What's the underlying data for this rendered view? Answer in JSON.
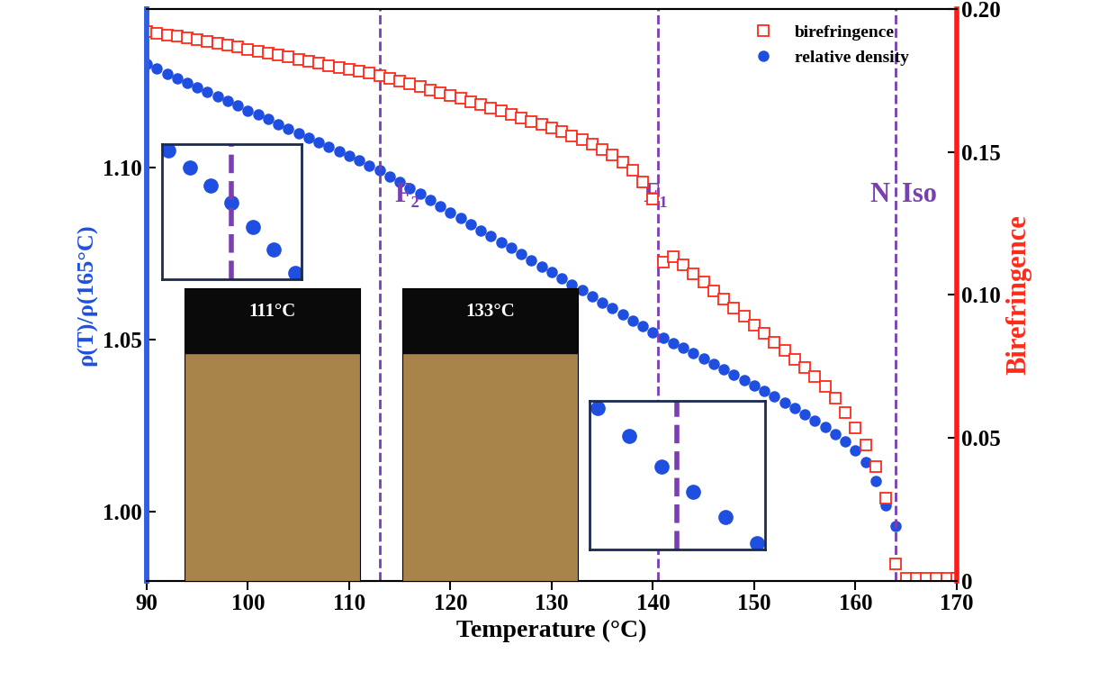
{
  "chart_data": {
    "type": "scatter",
    "xlabel": "Temperature (°C)",
    "ylabel": "ρ(T)/ρ(165°C)",
    "y2label": "Birefringence",
    "xlim": [
      90,
      170
    ],
    "xticks": [
      90,
      100,
      110,
      120,
      130,
      140,
      150,
      160,
      170
    ],
    "ylim": [
      0.98,
      1.146
    ],
    "yticks": [
      {
        "value": 1.0,
        "label": "1.00"
      },
      1.05,
      {
        "value": 1.1,
        "label": "1.10"
      }
    ],
    "y2lim": [
      0,
      0.2
    ],
    "y2ticks": [
      0,
      0.05,
      {
        "value": 0.1,
        "label": "0.10"
      },
      0.15,
      {
        "value": 0.2,
        "label": "0.20"
      }
    ],
    "legend": "upper right",
    "grid": false,
    "transition_temperatures": [
      113,
      140.5,
      164
    ],
    "phase_labels": [
      "F₂",
      "F₁",
      "N",
      "Iso"
    ],
    "photo_labels": [
      "111°C",
      "133°C"
    ],
    "series": [
      {
        "name": "birefringence",
        "color": "#ff2a1a",
        "marker": "square",
        "axis": "y2",
        "x": [
          90,
          91,
          92,
          93,
          94,
          95,
          96,
          97,
          98,
          99,
          100,
          101,
          102,
          103,
          104,
          105,
          106,
          107,
          108,
          109,
          110,
          111,
          112,
          113,
          114,
          115,
          116,
          117,
          118,
          119,
          120,
          121,
          122,
          123,
          124,
          125,
          126,
          127,
          128,
          129,
          130,
          131,
          132,
          133,
          134,
          135,
          136,
          137,
          138,
          139,
          140,
          141,
          142,
          143,
          144,
          145,
          146,
          147,
          148,
          149,
          150,
          151,
          152,
          153,
          154,
          155,
          156,
          157,
          158,
          159,
          160,
          161,
          162,
          163,
          164,
          165,
          166,
          167,
          168,
          169,
          170
        ],
        "values": [
          0.192,
          0.1915,
          0.191,
          0.1905,
          0.19,
          0.1893,
          0.1887,
          0.188,
          0.1874,
          0.1867,
          0.186,
          0.1853,
          0.1846,
          0.1839,
          0.1832,
          0.1825,
          0.1818,
          0.1811,
          0.1803,
          0.1796,
          0.1789,
          0.1782,
          0.1775,
          0.1768,
          0.1758,
          0.1748,
          0.1738,
          0.1728,
          0.1718,
          0.1707,
          0.1697,
          0.1687,
          0.1676,
          0.1665,
          0.1654,
          0.1643,
          0.1632,
          0.162,
          0.1608,
          0.1596,
          0.1584,
          0.1571,
          0.1557,
          0.1543,
          0.1528,
          0.151,
          0.149,
          0.1465,
          0.1435,
          0.1395,
          0.1335,
          0.1115,
          0.1135,
          0.1105,
          0.1075,
          0.1045,
          0.1015,
          0.0985,
          0.0955,
          0.0925,
          0.0895,
          0.0865,
          0.0835,
          0.0805,
          0.0775,
          0.0745,
          0.0715,
          0.068,
          0.064,
          0.059,
          0.0535,
          0.0475,
          0.04,
          0.029,
          0.006,
          0.001,
          0.001,
          0.001,
          0.001,
          0.001,
          0.001
        ]
      },
      {
        "name": "relative density",
        "color": "#1f4fe0",
        "marker": "circle",
        "x": [
          90,
          91,
          92,
          93,
          94,
          95,
          96,
          97,
          98,
          99,
          100,
          101,
          102,
          103,
          104,
          105,
          106,
          107,
          108,
          109,
          110,
          111,
          112,
          113,
          114,
          115,
          116,
          117,
          118,
          119,
          120,
          121,
          122,
          123,
          124,
          125,
          126,
          127,
          128,
          129,
          130,
          131,
          132,
          133,
          134,
          135,
          136,
          137,
          138,
          139,
          140,
          141,
          142,
          143,
          144,
          145,
          146,
          147,
          148,
          149,
          150,
          151,
          152,
          153,
          154,
          155,
          156,
          157,
          158,
          159,
          160,
          161,
          162,
          163,
          164
        ],
        "values": [
          1.13,
          1.1287,
          1.1273,
          1.126,
          1.1247,
          1.1233,
          1.122,
          1.1207,
          1.1193,
          1.118,
          1.1166,
          1.1153,
          1.114,
          1.1126,
          1.1113,
          1.11,
          1.1086,
          1.1073,
          1.106,
          1.1046,
          1.1033,
          1.102,
          1.1006,
          1.0993,
          1.0975,
          1.0958,
          1.094,
          1.0923,
          1.0905,
          1.0888,
          1.087,
          1.0853,
          1.0836,
          1.0818,
          1.0801,
          1.0783,
          1.0766,
          1.0748,
          1.0731,
          1.0713,
          1.0696,
          1.0678,
          1.0661,
          1.0644,
          1.0626,
          1.0609,
          1.0591,
          1.0574,
          1.0556,
          1.0539,
          1.0521,
          1.0506,
          1.0491,
          1.0476,
          1.0461,
          1.0446,
          1.0431,
          1.0415,
          1.0399,
          1.0383,
          1.0367,
          1.0351,
          1.0335,
          1.0318,
          1.0301,
          1.0284,
          1.0266,
          1.0247,
          1.0227,
          1.0205,
          1.018,
          1.0145,
          1.009,
          1.002,
          0.996
        ]
      }
    ]
  }
}
